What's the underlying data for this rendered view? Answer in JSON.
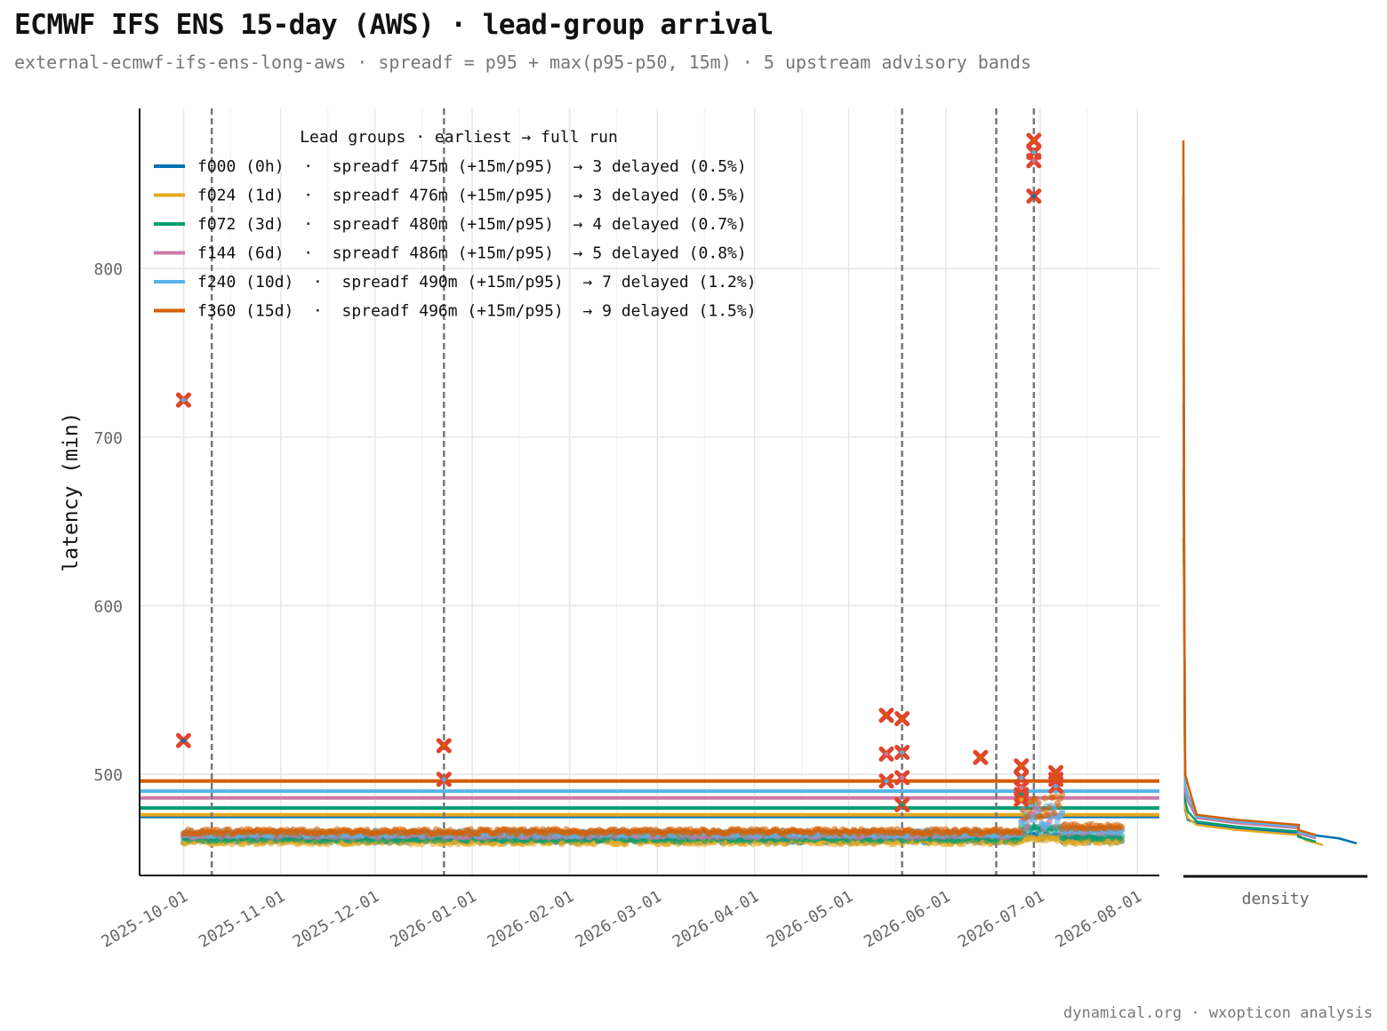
{
  "title": "ECMWF IFS ENS 15-day (AWS) · lead-group arrival",
  "subtitle": "external-ecmwf-ifs-ens-long-aws · spreadf = p95 + max(p95-p50, 15m) · 5 upstream advisory bands",
  "footer": "dynamical.org · wxopticon analysis",
  "colors": {
    "f000": "#0072b2",
    "f024": "#e6a91f",
    "f072": "#009e73",
    "f144": "#cc79a7",
    "f240": "#56b4e9",
    "f360": "#d55e00",
    "delayed_marker": "#e0452b",
    "advisory_line": "#777777",
    "grid": "#e6e6e6"
  },
  "chart_data": {
    "type": "scatter",
    "ylabel": "latency (min)",
    "ylim": [
      440,
      895
    ],
    "yticks": [
      500,
      600,
      700,
      800
    ],
    "xlim": [
      "2025-09-17",
      "2026-08-08"
    ],
    "xticks": [
      "2025-10-01",
      "2025-11-01",
      "2025-12-01",
      "2026-01-01",
      "2026-02-01",
      "2026-03-01",
      "2026-04-01",
      "2026-05-01",
      "2026-06-01",
      "2026-07-01",
      "2026-08-01"
    ],
    "grid": true,
    "legend": {
      "title": "Lead groups · earliest → full run",
      "placement": "top-left",
      "entries": [
        {
          "key": "f000",
          "label": "f000 (0h)  ·  spreadf 475m (+15m/p95)  → 3 delayed (0.5%)"
        },
        {
          "key": "f024",
          "label": "f024 (1d)  ·  spreadf 476m (+15m/p95)  → 3 delayed (0.5%)"
        },
        {
          "key": "f072",
          "label": "f072 (3d)  ·  spreadf 480m (+15m/p95)  → 4 delayed (0.7%)"
        },
        {
          "key": "f144",
          "label": "f144 (6d)  ·  spreadf 486m (+15m/p95)  → 5 delayed (0.8%)"
        },
        {
          "key": "f240",
          "label": "f240 (10d)  ·  spreadf 490m (+15m/p95)  → 7 delayed (1.2%)"
        },
        {
          "key": "f360",
          "label": "f360 (15d)  ·  spreadf 496m (+15m/p95)  → 9 delayed (1.5%)"
        }
      ]
    },
    "thresholds": [
      {
        "key": "f000",
        "value": 475
      },
      {
        "key": "f024",
        "value": 476
      },
      {
        "key": "f072",
        "value": 480
      },
      {
        "key": "f144",
        "value": 486
      },
      {
        "key": "f240",
        "value": 490
      },
      {
        "key": "f360",
        "value": 496
      }
    ],
    "advisory_dates": [
      "2025-10-10",
      "2025-12-23",
      "2026-05-18",
      "2026-06-17",
      "2026-06-29"
    ],
    "series": [
      {
        "key": "f000",
        "segments": [
          {
            "from": "2025-10-01",
            "to": "2026-06-25",
            "y": 461
          },
          {
            "from": "2026-06-25",
            "to": "2026-07-08",
            "y": 463
          },
          {
            "from": "2026-07-08",
            "to": "2026-07-27",
            "y": 461
          }
        ]
      },
      {
        "key": "f024",
        "segments": [
          {
            "from": "2025-10-01",
            "to": "2026-06-25",
            "y": 460
          },
          {
            "from": "2026-06-25",
            "to": "2026-07-08",
            "y": 462
          },
          {
            "from": "2026-07-08",
            "to": "2026-07-27",
            "y": 460
          }
        ]
      },
      {
        "key": "f072",
        "segments": [
          {
            "from": "2025-10-01",
            "to": "2026-06-25",
            "y": 462
          },
          {
            "from": "2026-06-25",
            "to": "2026-07-08",
            "y": 468
          },
          {
            "from": "2026-07-08",
            "to": "2026-07-27",
            "y": 463
          }
        ]
      },
      {
        "key": "f144",
        "segments": [
          {
            "from": "2025-10-01",
            "to": "2026-06-25",
            "y": 464
          },
          {
            "from": "2026-06-25",
            "to": "2026-07-08",
            "y": 473
          },
          {
            "from": "2026-07-08",
            "to": "2026-07-27",
            "y": 466
          }
        ]
      },
      {
        "key": "f240",
        "segments": [
          {
            "from": "2025-10-01",
            "to": "2026-06-25",
            "y": 465
          },
          {
            "from": "2026-06-25",
            "to": "2026-07-08",
            "y": 476
          },
          {
            "from": "2026-07-08",
            "to": "2026-07-27",
            "y": 467
          }
        ]
      },
      {
        "key": "f360",
        "segments": [
          {
            "from": "2025-10-01",
            "to": "2026-06-25",
            "y": 466
          },
          {
            "from": "2026-06-25",
            "to": "2026-07-08",
            "y": 480
          },
          {
            "from": "2026-07-08",
            "to": "2026-07-27",
            "y": 469
          }
        ]
      }
    ],
    "delayed_runs": [
      {
        "date": "2025-10-01",
        "y": 722,
        "key": "f360"
      },
      {
        "date": "2025-10-01",
        "y": 722,
        "key": "f240"
      },
      {
        "date": "2025-10-01",
        "y": 520,
        "key": "f000"
      },
      {
        "date": "2025-12-23",
        "y": 517,
        "key": "f360"
      },
      {
        "date": "2025-12-23",
        "y": 497,
        "key": "f240"
      },
      {
        "date": "2026-05-13",
        "y": 535,
        "key": "f360"
      },
      {
        "date": "2026-05-13",
        "y": 512,
        "key": "f144"
      },
      {
        "date": "2026-05-13",
        "y": 496,
        "key": "f240"
      },
      {
        "date": "2026-05-18",
        "y": 533,
        "key": "f360"
      },
      {
        "date": "2026-05-18",
        "y": 513,
        "key": "f240"
      },
      {
        "date": "2026-05-18",
        "y": 498,
        "key": "f144"
      },
      {
        "date": "2026-05-18",
        "y": 482,
        "key": "f072"
      },
      {
        "date": "2026-06-12",
        "y": 510,
        "key": "f360"
      },
      {
        "date": "2026-06-25",
        "y": 505,
        "key": "f360"
      },
      {
        "date": "2026-06-25",
        "y": 498,
        "key": "f240"
      },
      {
        "date": "2026-06-25",
        "y": 492,
        "key": "f144"
      },
      {
        "date": "2026-06-25",
        "y": 488,
        "key": "f072"
      },
      {
        "date": "2026-06-25",
        "y": 485,
        "key": "f024"
      },
      {
        "date": "2026-06-29",
        "y": 876,
        "key": "f360"
      },
      {
        "date": "2026-06-29",
        "y": 869,
        "key": "f240"
      },
      {
        "date": "2026-06-29",
        "y": 864,
        "key": "f144"
      },
      {
        "date": "2026-06-29",
        "y": 843,
        "key": "f000"
      },
      {
        "date": "2026-07-06",
        "y": 501,
        "key": "f360"
      },
      {
        "date": "2026-07-06",
        "y": 497,
        "key": "f360"
      },
      {
        "date": "2026-07-06",
        "y": 493,
        "key": "f240"
      }
    ],
    "marginal": {
      "xlabel": "density"
    }
  }
}
